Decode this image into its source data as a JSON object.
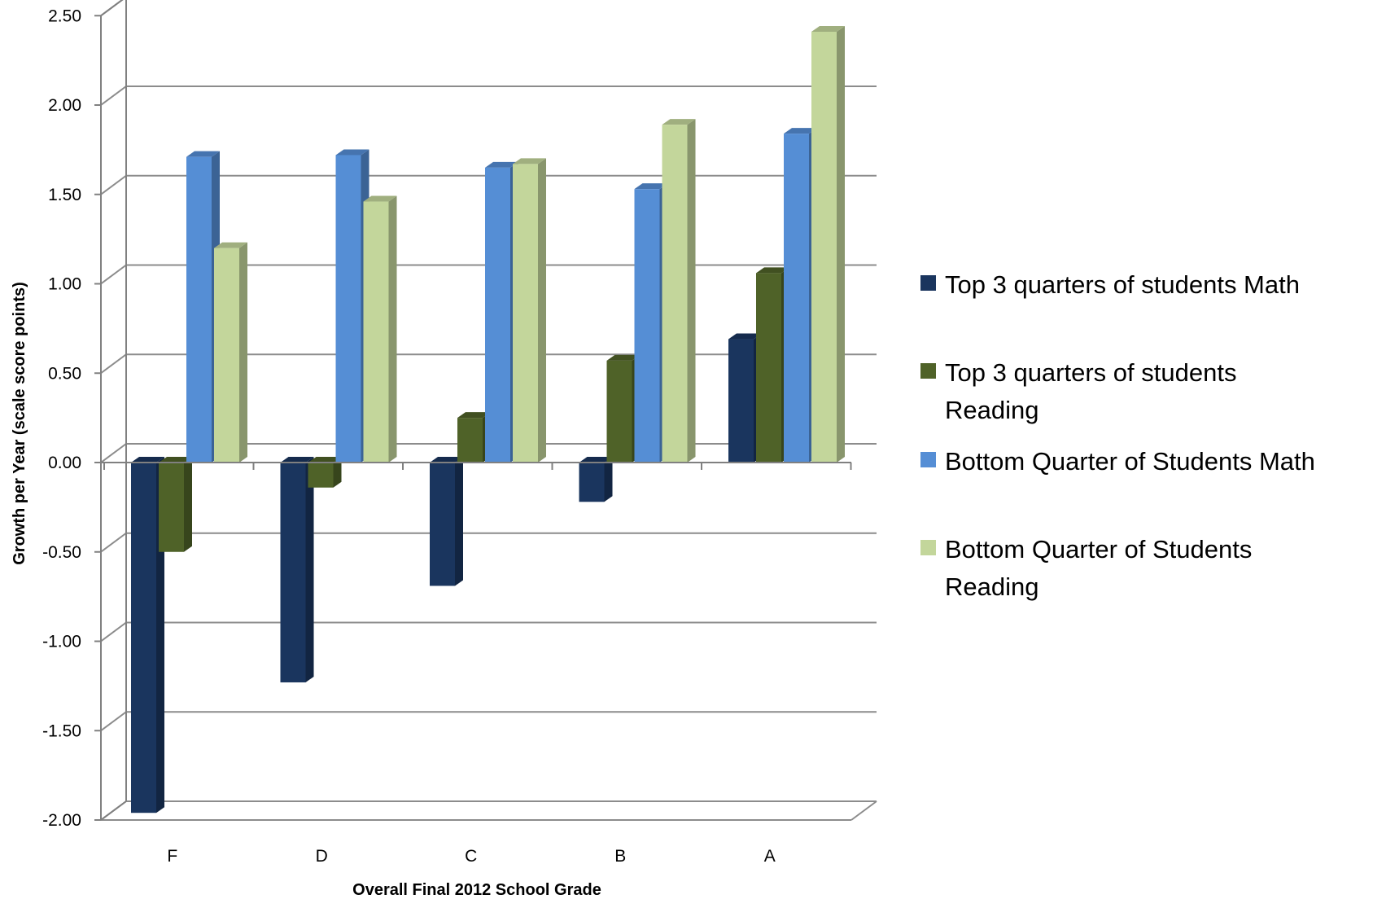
{
  "chart_data": {
    "type": "bar",
    "style": "3d-clustered-column",
    "title": "",
    "xlabel": "Overall Final 2012 School Grade",
    "ylabel": "Growth per Year (scale score points)",
    "ylim": [
      -2.0,
      2.5
    ],
    "yticks": [
      "2.50",
      "2.00",
      "1.50",
      "1.00",
      "0.50",
      "0.00",
      "-0.50",
      "-1.00",
      "-1.50",
      "-2.00"
    ],
    "ytick_values": [
      2.5,
      2.0,
      1.5,
      1.0,
      0.5,
      0.0,
      -0.5,
      -1.0,
      -1.5,
      -2.0
    ],
    "grid": true,
    "legend_position": "right",
    "categories": [
      "F",
      "D",
      "C",
      "B",
      "A"
    ],
    "series": [
      {
        "name": "Top 3 quarters of students  Math",
        "legend_lines": [
          "Top 3 quarters of students  Math"
        ],
        "color": "#1a355e",
        "values": [
          -1.96,
          -1.23,
          -0.69,
          -0.22,
          0.69
        ]
      },
      {
        "name": "Top 3 quarters of students Reading",
        "legend_lines": [
          "Top 3 quarters of students",
          "Reading"
        ],
        "color": "#4f6228",
        "values": [
          -0.5,
          -0.14,
          0.25,
          0.57,
          1.06
        ]
      },
      {
        "name": "Bottom Quarter of Students Math",
        "legend_lines": [
          "Bottom Quarter of Students Math"
        ],
        "color": "#558ed5",
        "values": [
          1.71,
          1.72,
          1.65,
          1.53,
          1.84
        ]
      },
      {
        "name": "Bottom Quarter of Students Reading",
        "legend_lines": [
          "Bottom Quarter of Students",
          "Reading"
        ],
        "color": "#c3d69b",
        "values": [
          1.2,
          1.46,
          1.67,
          1.89,
          2.41
        ]
      }
    ]
  }
}
